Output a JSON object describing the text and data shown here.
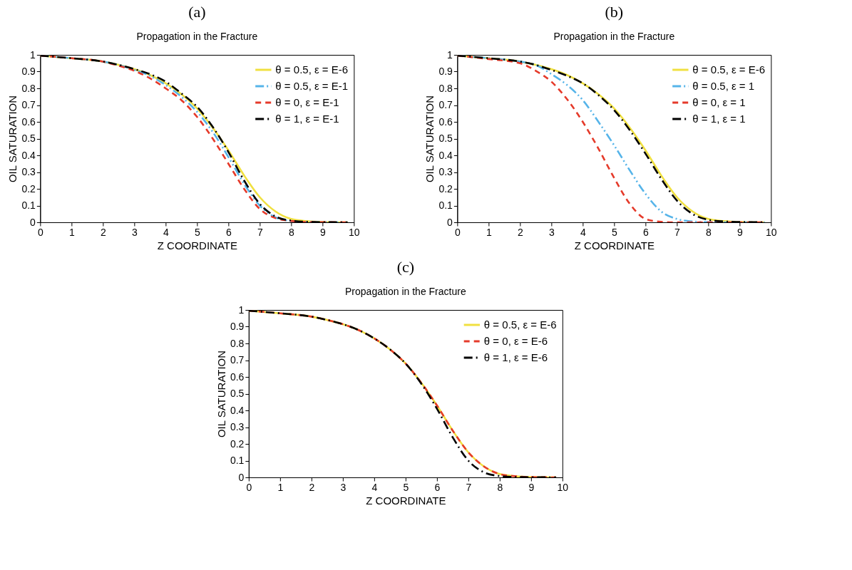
{
  "chart_data": [
    {
      "type": "line",
      "title": "(a)",
      "subtitle": "Propagation in the Fracture",
      "xlabel": "Z COORDINATE",
      "ylabel": "OIL SATURATION",
      "x": [
        0,
        1,
        2,
        2.5,
        3,
        3.5,
        4,
        4.5,
        5,
        5.5,
        6,
        6.5,
        7,
        7.5,
        8,
        8.5,
        9,
        9.8
      ],
      "xlim": [
        0,
        10
      ],
      "ylim": [
        0,
        1
      ],
      "xticks": [
        0,
        1,
        2,
        3,
        4,
        5,
        6,
        7,
        8,
        9,
        10
      ],
      "yticks": [
        0,
        0.1,
        0.2,
        0.3,
        0.4,
        0.5,
        0.6,
        0.7,
        0.8,
        0.9,
        1
      ],
      "grid": false,
      "legend": "top right",
      "series": [
        {
          "name": "θ = 0.5, ε = E-6",
          "color": "#f0e040",
          "line_style": "solid",
          "values": [
            0.995,
            0.98,
            0.96,
            0.94,
            0.915,
            0.88,
            0.83,
            0.765,
            0.68,
            0.565,
            0.43,
            0.28,
            0.15,
            0.065,
            0.02,
            0.007,
            0.002,
            0
          ]
        },
        {
          "name": "θ = 0.5, ε = E-1",
          "color": "#56b4e9",
          "line_style": "dashdotdot",
          "values": [
            0.995,
            0.98,
            0.96,
            0.94,
            0.91,
            0.875,
            0.82,
            0.75,
            0.66,
            0.54,
            0.39,
            0.23,
            0.1,
            0.03,
            0.008,
            0.002,
            0.001,
            0
          ]
        },
        {
          "name": "θ = 0, ε = E-1",
          "color": "#e53a2a",
          "line_style": "dashed",
          "values": [
            0.995,
            0.98,
            0.96,
            0.935,
            0.905,
            0.86,
            0.8,
            0.73,
            0.63,
            0.5,
            0.35,
            0.2,
            0.08,
            0.025,
            0.008,
            0.002,
            0.001,
            0
          ]
        },
        {
          "name": "θ = 1, ε = E-1",
          "color": "#000000",
          "line_style": "dashdot",
          "values": [
            0.995,
            0.98,
            0.96,
            0.94,
            0.915,
            0.885,
            0.84,
            0.77,
            0.69,
            0.57,
            0.42,
            0.25,
            0.11,
            0.035,
            0.01,
            0.003,
            0.001,
            0
          ]
        }
      ]
    },
    {
      "type": "line",
      "title": "(b)",
      "subtitle": "Propagation in the Fracture",
      "xlabel": "Z COORDINATE",
      "ylabel": "OIL SATURATION",
      "x": [
        0,
        1,
        2,
        2.5,
        3,
        3.5,
        4,
        4.5,
        5,
        5.5,
        6,
        6.5,
        7,
        7.5,
        8,
        8.5,
        9,
        9.8
      ],
      "xlim": [
        0,
        10
      ],
      "ylim": [
        0,
        1
      ],
      "xticks": [
        0,
        1,
        2,
        3,
        4,
        5,
        6,
        7,
        8,
        9,
        10
      ],
      "yticks": [
        0,
        0.1,
        0.2,
        0.3,
        0.4,
        0.5,
        0.6,
        0.7,
        0.8,
        0.9,
        1
      ],
      "grid": false,
      "legend": "top right",
      "series": [
        {
          "name": "θ = 0.5, ε = E-6",
          "color": "#f0e040",
          "line_style": "solid",
          "values": [
            0.995,
            0.98,
            0.96,
            0.94,
            0.915,
            0.88,
            0.83,
            0.765,
            0.68,
            0.565,
            0.43,
            0.28,
            0.15,
            0.065,
            0.02,
            0.007,
            0.002,
            0
          ]
        },
        {
          "name": "θ = 0.5, ε = 1",
          "color": "#56b4e9",
          "line_style": "dashdotdot",
          "values": [
            0.995,
            0.98,
            0.96,
            0.94,
            0.885,
            0.82,
            0.73,
            0.6,
            0.46,
            0.31,
            0.17,
            0.065,
            0.02,
            0.005,
            0.001,
            0,
            0,
            0
          ]
        },
        {
          "name": "θ = 0, ε = 1",
          "color": "#e53a2a",
          "line_style": "dashed",
          "values": [
            0.995,
            0.975,
            0.95,
            0.905,
            0.84,
            0.735,
            0.6,
            0.44,
            0.265,
            0.11,
            0.02,
            0.003,
            0,
            0,
            0,
            0,
            0,
            0
          ]
        },
        {
          "name": "θ = 1, ε = 1",
          "color": "#000000",
          "line_style": "dashdot",
          "values": [
            0.995,
            0.98,
            0.96,
            0.94,
            0.91,
            0.875,
            0.83,
            0.76,
            0.67,
            0.55,
            0.41,
            0.26,
            0.13,
            0.05,
            0.015,
            0.005,
            0.002,
            0
          ]
        }
      ]
    },
    {
      "type": "line",
      "title": "(c)",
      "subtitle": "Propagation in the Fracture",
      "xlabel": "Z COORDINATE",
      "ylabel": "OIL SATURATION",
      "x": [
        0,
        1,
        2,
        2.5,
        3,
        3.5,
        4,
        4.5,
        5,
        5.5,
        6,
        6.5,
        7,
        7.5,
        8,
        8.5,
        9,
        9.8
      ],
      "xlim": [
        0,
        10
      ],
      "ylim": [
        0,
        1
      ],
      "xticks": [
        0,
        1,
        2,
        3,
        4,
        5,
        6,
        7,
        8,
        9,
        10
      ],
      "yticks": [
        0,
        0.1,
        0.2,
        0.3,
        0.4,
        0.5,
        0.6,
        0.7,
        0.8,
        0.9,
        1
      ],
      "grid": false,
      "legend": "top right",
      "series": [
        {
          "name": "θ = 0.5, ε = E-6",
          "color": "#f0e040",
          "line_style": "solid",
          "values": [
            0.995,
            0.98,
            0.96,
            0.94,
            0.915,
            0.88,
            0.83,
            0.765,
            0.68,
            0.565,
            0.43,
            0.28,
            0.15,
            0.065,
            0.02,
            0.007,
            0.002,
            0
          ]
        },
        {
          "name": "θ = 0, ε = E-6",
          "color": "#e53a2a",
          "line_style": "dashed",
          "values": [
            0.995,
            0.98,
            0.96,
            0.94,
            0.915,
            0.88,
            0.83,
            0.765,
            0.68,
            0.565,
            0.43,
            0.28,
            0.15,
            0.065,
            0.02,
            0.007,
            0.002,
            0
          ]
        },
        {
          "name": "θ = 1, ε = E-6",
          "color": "#000000",
          "line_style": "dashdot",
          "values": [
            0.995,
            0.98,
            0.96,
            0.94,
            0.915,
            0.88,
            0.83,
            0.765,
            0.68,
            0.56,
            0.41,
            0.24,
            0.1,
            0.03,
            0.008,
            0.002,
            0.001,
            0
          ]
        }
      ]
    }
  ]
}
